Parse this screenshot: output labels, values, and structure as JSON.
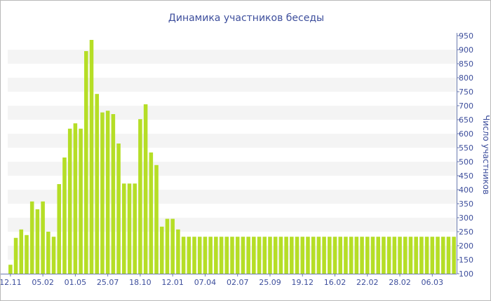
{
  "chart_data": {
    "type": "bar",
    "title": "Динамика участников беседы",
    "ylabel": "Число участников",
    "xlabel": "",
    "ylim": [
      100,
      950
    ],
    "yticks": [
      100,
      150,
      200,
      250,
      300,
      350,
      400,
      450,
      500,
      550,
      600,
      650,
      700,
      750,
      800,
      850,
      900,
      950
    ],
    "y_axis_position": "right",
    "grid": "alternating horizontal bands",
    "xtick_labels": [
      {
        "label": "12.11",
        "index": 0
      },
      {
        "label": "05.02",
        "index": 6
      },
      {
        "label": "01.05",
        "index": 12
      },
      {
        "label": "25.07",
        "index": 18
      },
      {
        "label": "18.10",
        "index": 24
      },
      {
        "label": "12.01",
        "index": 30
      },
      {
        "label": "07.04",
        "index": 36
      },
      {
        "label": "02.07",
        "index": 42
      },
      {
        "label": "25.09",
        "index": 48
      },
      {
        "label": "19.12",
        "index": 54
      },
      {
        "label": "16.02",
        "index": 60
      },
      {
        "label": "22.02",
        "index": 66
      },
      {
        "label": "28.02",
        "index": 72
      },
      {
        "label": "06.03",
        "index": 78
      }
    ],
    "values": [
      132,
      228,
      258,
      238,
      358,
      330,
      358,
      250,
      232,
      420,
      515,
      618,
      637,
      618,
      895,
      935,
      742,
      676,
      682,
      670,
      565,
      422,
      422,
      422,
      652,
      705,
      533,
      488,
      268,
      296,
      296,
      258,
      232,
      232,
      232,
      232,
      232,
      232,
      232,
      232,
      232,
      232,
      232,
      232,
      232,
      232,
      232,
      232,
      232,
      232,
      232,
      232,
      232,
      232,
      232,
      232,
      232,
      232,
      232,
      232,
      232,
      232,
      232,
      232,
      232,
      232,
      232,
      232,
      232,
      232,
      232,
      232,
      232,
      232,
      232,
      232,
      232,
      232,
      232,
      232,
      232,
      232,
      232
    ],
    "bar_color": "#b5de26",
    "band_color": "#f4f4f4",
    "text_color": "#3d4e9c"
  }
}
